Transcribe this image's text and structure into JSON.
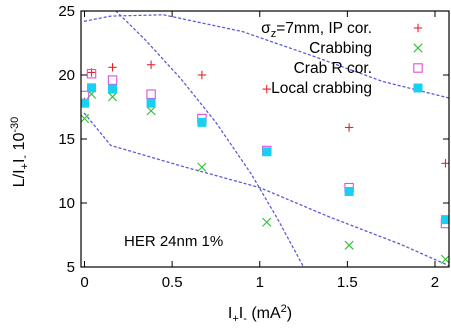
{
  "chart_data": {
    "type": "scatter",
    "x_ticks": [
      "0",
      "0.5",
      "1",
      "1.5",
      "2"
    ],
    "y_ticks": [
      "5",
      "10",
      "15",
      "20",
      "25"
    ],
    "xlim": [
      -0.02,
      2.08
    ],
    "ylim": [
      5,
      25
    ],
    "grid": false,
    "legend_position": "top-right",
    "axis_labels": {
      "x_base": "I",
      "x_sub1": "+",
      "x_mid": "I",
      "x_sub2": "-",
      "x_unit": " (mA",
      "x_sup": "2",
      "x_close": ")",
      "y_base": "L/I",
      "y_sub1": "+",
      "y_mid": "I",
      "y_sub2": "-",
      "y_exp_base": " 10",
      "y_sup": "-30"
    },
    "annotation": "HER 24nm 1%",
    "series": [
      {
        "legend_main": "σ",
        "legend_sub": "z",
        "legend_rest": "=7mm, IP cor.",
        "marker": "plus",
        "color": "#e8222a",
        "x": [
          0.0,
          0.04,
          0.16,
          0.38,
          0.67,
          1.04,
          1.51,
          2.06
        ],
        "y": [
          17.9,
          20.2,
          20.6,
          20.8,
          20.0,
          18.9,
          15.9,
          13.1
        ]
      },
      {
        "legend_main": "Crabbing",
        "marker": "x",
        "color": "#2fbf2f",
        "x": [
          0.0,
          0.04,
          0.16,
          0.38,
          0.67,
          1.04,
          1.51,
          2.06
        ],
        "y": [
          16.6,
          18.5,
          18.3,
          17.2,
          12.8,
          8.5,
          6.7,
          5.6
        ]
      },
      {
        "legend_main": "Crab R cor.",
        "marker": "open-square",
        "color": "#e14ee1",
        "x": [
          0.0,
          0.04,
          0.16,
          0.38,
          0.67,
          1.04,
          1.51,
          2.06
        ],
        "y": [
          18.4,
          20.1,
          19.6,
          18.5,
          16.6,
          14.1,
          11.2,
          8.4
        ]
      },
      {
        "legend_main": "Local crabbing",
        "marker": "filled-square",
        "color": "#1ad0f0",
        "x": [
          0.0,
          0.04,
          0.16,
          0.38,
          0.67,
          1.04,
          1.51,
          2.06
        ],
        "y": [
          17.8,
          19.0,
          18.9,
          17.8,
          16.3,
          14.0,
          10.9,
          8.7
        ]
      }
    ],
    "contours": [
      {
        "style": "dotted",
        "color": "#5b5bd6",
        "x": [
          0.0,
          0.15,
          0.45,
          0.9,
          1.3,
          1.7,
          2.08
        ],
        "y": [
          24.2,
          24.6,
          24.7,
          23.4,
          21.5,
          19.5,
          18.2
        ]
      },
      {
        "style": "dotted",
        "color": "#5b5bd6",
        "x": [
          0.0,
          0.15,
          0.55,
          1.0,
          1.4,
          1.8,
          2.08
        ],
        "y": [
          17.0,
          14.5,
          12.9,
          11.2,
          8.9,
          6.8,
          5.1
        ]
      },
      {
        "style": "dotted",
        "color": "#5b5bd6",
        "x": [
          0.18,
          0.35,
          0.55,
          0.75,
          0.95,
          1.1,
          1.25
        ],
        "y": [
          25.0,
          22.7,
          19.7,
          16.3,
          12.3,
          8.8,
          5.0
        ]
      }
    ]
  }
}
